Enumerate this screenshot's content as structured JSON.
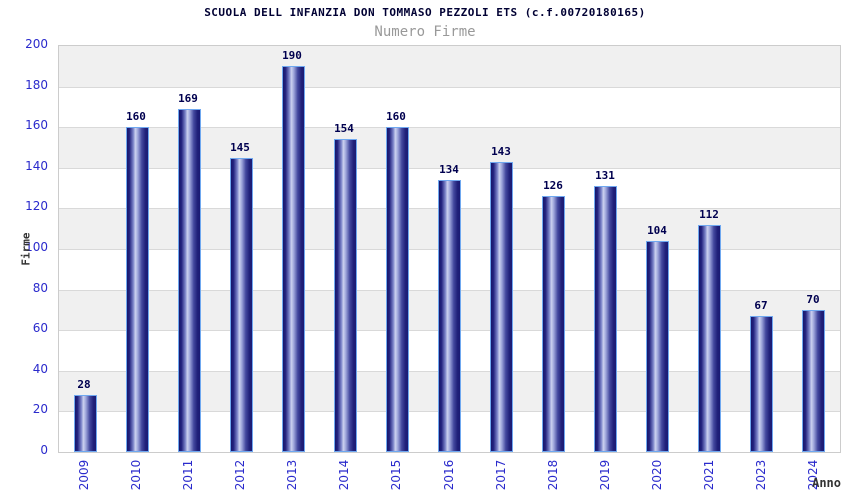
{
  "chart_data": {
    "type": "bar",
    "title": "SCUOLA DELL INFANZIA DON TOMMASO PEZZOLI ETS (c.f.00720180165)",
    "subtitle": "Numero Firme",
    "xlabel": "Anno",
    "ylabel": "Firme",
    "categories": [
      "2009",
      "2010",
      "2011",
      "2012",
      "2013",
      "2014",
      "2015",
      "2016",
      "2017",
      "2018",
      "2019",
      "2020",
      "2021",
      "2023",
      "2024"
    ],
    "values": [
      28,
      160,
      169,
      145,
      190,
      154,
      160,
      134,
      143,
      126,
      131,
      104,
      112,
      67,
      70
    ],
    "ylim": [
      0,
      200
    ],
    "ytick_step": 20,
    "yticks": [
      0,
      20,
      40,
      60,
      80,
      100,
      120,
      140,
      160,
      180,
      200
    ],
    "grid": true,
    "legend": "none",
    "background_bands": "alternating gray/white every 20 units, gray at top band",
    "colors": {
      "bar_dark": "#1b1b74",
      "bar_highlight": "#cdd2f0",
      "bar_border": "#6fa8f0",
      "tick_label": "#2a2acc",
      "value_label": "#00004f",
      "title": "#000033",
      "subtitle": "#999999",
      "axis_title": "#333333",
      "band_gray": "#f0f0f0",
      "band_white": "#ffffff",
      "gridline": "#d9d9d9",
      "plot_border": "#cccccc"
    }
  }
}
